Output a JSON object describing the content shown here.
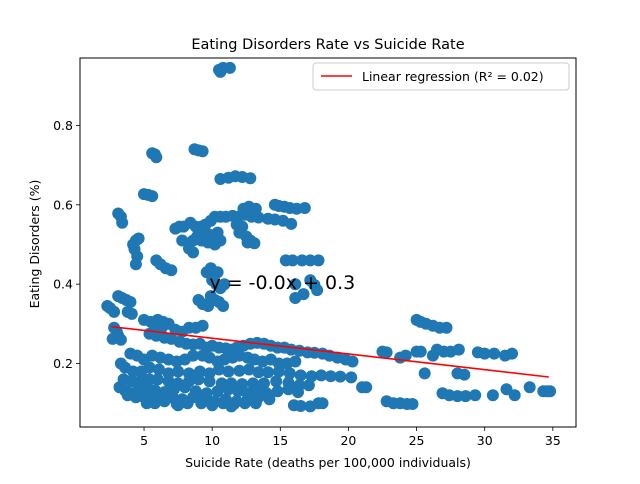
{
  "chart_data": {
    "type": "scatter",
    "title": "Eating Disorders Rate vs Suicide Rate",
    "xlabel": "Suicide Rate (deaths per 100,000 individuals)",
    "ylabel": "Eating Disorders (%)",
    "xlim": [
      0.3,
      36.7
    ],
    "ylim": [
      0.04,
      0.97
    ],
    "xticks": [
      5,
      10,
      15,
      20,
      25,
      30,
      35
    ],
    "yticks": [
      0.2,
      0.4,
      0.6,
      0.8
    ],
    "xtick_labels": [
      "5",
      "10",
      "15",
      "20",
      "25",
      "30",
      "35"
    ],
    "ytick_labels": [
      "0.2",
      "0.4",
      "0.6",
      "0.8"
    ],
    "grid": false,
    "legend_position": "upper-right",
    "colors": {
      "points": "#1f77b4",
      "regression": "#ff0000"
    },
    "annotation": {
      "text": "y = -0.0x + 0.3",
      "x": 9.8,
      "y": 0.405
    },
    "regression": {
      "label": "Linear regression (R² = 0.02)",
      "x": [
        2.6,
        34.7
      ],
      "y": [
        0.293,
        0.166
      ]
    },
    "points": [
      [
        10.5,
        0.94
      ],
      [
        10.8,
        0.945
      ],
      [
        11.3,
        0.945
      ],
      [
        10.6,
        0.935
      ],
      [
        8.7,
        0.74
      ],
      [
        9.0,
        0.737
      ],
      [
        9.3,
        0.735
      ],
      [
        5.6,
        0.73
      ],
      [
        5.8,
        0.727
      ],
      [
        5.9,
        0.72
      ],
      [
        10.6,
        0.665
      ],
      [
        11.2,
        0.668
      ],
      [
        11.7,
        0.672
      ],
      [
        12.2,
        0.67
      ],
      [
        12.8,
        0.667
      ],
      [
        5.0,
        0.627
      ],
      [
        5.3,
        0.625
      ],
      [
        5.6,
        0.622
      ],
      [
        3.1,
        0.578
      ],
      [
        3.3,
        0.57
      ],
      [
        3.4,
        0.555
      ],
      [
        4.2,
        0.5
      ],
      [
        4.4,
        0.51
      ],
      [
        4.6,
        0.515
      ],
      [
        4.3,
        0.488
      ],
      [
        4.5,
        0.47
      ],
      [
        4.4,
        0.45
      ],
      [
        5.9,
        0.46
      ],
      [
        6.2,
        0.45
      ],
      [
        6.6,
        0.44
      ],
      [
        7.0,
        0.435
      ],
      [
        7.3,
        0.54
      ],
      [
        7.6,
        0.545
      ],
      [
        7.9,
        0.545
      ],
      [
        8.4,
        0.555
      ],
      [
        8.8,
        0.545
      ],
      [
        9.2,
        0.545
      ],
      [
        9.5,
        0.55
      ],
      [
        9.9,
        0.56
      ],
      [
        10.2,
        0.57
      ],
      [
        10.6,
        0.57
      ],
      [
        11.0,
        0.57
      ],
      [
        11.5,
        0.572
      ],
      [
        11.9,
        0.57
      ],
      [
        9.5,
        0.53
      ],
      [
        9.8,
        0.525
      ],
      [
        10.0,
        0.52
      ],
      [
        10.4,
        0.53
      ],
      [
        9.7,
        0.505
      ],
      [
        10.2,
        0.5
      ],
      [
        10.6,
        0.51
      ],
      [
        8.6,
        0.51
      ],
      [
        8.9,
        0.52
      ],
      [
        9.2,
        0.51
      ],
      [
        8.3,
        0.49
      ],
      [
        8.6,
        0.48
      ],
      [
        7.8,
        0.51
      ],
      [
        12.3,
        0.59
      ],
      [
        12.7,
        0.595
      ],
      [
        13.2,
        0.59
      ],
      [
        12.4,
        0.575
      ],
      [
        12.9,
        0.57
      ],
      [
        13.4,
        0.568
      ],
      [
        11.8,
        0.55
      ],
      [
        12.2,
        0.545
      ],
      [
        12.0,
        0.53
      ],
      [
        12.5,
        0.52
      ],
      [
        12.8,
        0.51
      ],
      [
        12.6,
        0.505
      ],
      [
        13.1,
        0.503
      ],
      [
        14.6,
        0.6
      ],
      [
        14.9,
        0.597
      ],
      [
        15.3,
        0.595
      ],
      [
        15.7,
        0.592
      ],
      [
        16.2,
        0.59
      ],
      [
        16.8,
        0.592
      ],
      [
        14.1,
        0.565
      ],
      [
        14.6,
        0.563
      ],
      [
        15.2,
        0.56
      ],
      [
        15.8,
        0.552
      ],
      [
        15.4,
        0.46
      ],
      [
        15.9,
        0.46
      ],
      [
        16.6,
        0.46
      ],
      [
        17.2,
        0.46
      ],
      [
        17.8,
        0.46
      ],
      [
        17.2,
        0.41
      ],
      [
        17.5,
        0.398
      ],
      [
        17.7,
        0.385
      ],
      [
        16.1,
        0.365
      ],
      [
        16.7,
        0.375
      ],
      [
        16.1,
        0.4
      ],
      [
        9.6,
        0.43
      ],
      [
        9.9,
        0.44
      ],
      [
        10.4,
        0.43
      ],
      [
        10.0,
        0.41
      ],
      [
        10.3,
        0.4
      ],
      [
        10.6,
        0.39
      ],
      [
        10.9,
        0.4
      ],
      [
        9.9,
        0.37
      ],
      [
        10.2,
        0.36
      ],
      [
        10.5,
        0.355
      ],
      [
        10.8,
        0.345
      ],
      [
        9.0,
        0.36
      ],
      [
        9.3,
        0.35
      ],
      [
        9.7,
        0.345
      ],
      [
        2.3,
        0.345
      ],
      [
        2.5,
        0.34
      ],
      [
        2.8,
        0.33
      ],
      [
        3.1,
        0.37
      ],
      [
        3.4,
        0.365
      ],
      [
        3.7,
        0.36
      ],
      [
        4.0,
        0.355
      ],
      [
        3.8,
        0.33
      ],
      [
        4.1,
        0.325
      ],
      [
        5.0,
        0.31
      ],
      [
        5.5,
        0.305
      ],
      [
        6.0,
        0.31
      ],
      [
        6.4,
        0.305
      ],
      [
        5.8,
        0.295
      ],
      [
        6.3,
        0.29
      ],
      [
        6.8,
        0.3
      ],
      [
        7.3,
        0.285
      ],
      [
        7.8,
        0.28
      ],
      [
        8.3,
        0.29
      ],
      [
        8.8,
        0.29
      ],
      [
        9.3,
        0.295
      ],
      [
        5.4,
        0.275
      ],
      [
        5.9,
        0.27
      ],
      [
        6.5,
        0.265
      ],
      [
        7.0,
        0.262
      ],
      [
        2.8,
        0.29
      ],
      [
        3.0,
        0.28
      ],
      [
        3.1,
        0.27
      ],
      [
        2.7,
        0.262
      ],
      [
        3.3,
        0.26
      ],
      [
        7.6,
        0.255
      ],
      [
        8.1,
        0.25
      ],
      [
        8.6,
        0.248
      ],
      [
        9.1,
        0.25
      ],
      [
        9.6,
        0.24
      ],
      [
        10.0,
        0.245
      ],
      [
        10.5,
        0.24
      ],
      [
        11.0,
        0.238
      ],
      [
        11.4,
        0.235
      ],
      [
        11.8,
        0.24
      ],
      [
        12.3,
        0.245
      ],
      [
        12.8,
        0.25
      ],
      [
        13.3,
        0.252
      ],
      [
        13.8,
        0.25
      ],
      [
        14.3,
        0.245
      ],
      [
        14.8,
        0.24
      ],
      [
        15.3,
        0.24
      ],
      [
        15.8,
        0.235
      ],
      [
        16.4,
        0.232
      ],
      [
        17.0,
        0.228
      ],
      [
        17.5,
        0.227
      ],
      [
        18.1,
        0.225
      ],
      [
        18.6,
        0.22
      ],
      [
        19.2,
        0.215
      ],
      [
        19.8,
        0.21
      ],
      [
        20.3,
        0.205
      ],
      [
        4.0,
        0.225
      ],
      [
        4.5,
        0.22
      ],
      [
        5.0,
        0.21
      ],
      [
        5.6,
        0.22
      ],
      [
        6.2,
        0.215
      ],
      [
        6.8,
        0.21
      ],
      [
        7.4,
        0.205
      ],
      [
        8.0,
        0.21
      ],
      [
        8.6,
        0.22
      ],
      [
        9.3,
        0.22
      ],
      [
        9.8,
        0.215
      ],
      [
        10.4,
        0.205
      ],
      [
        10.9,
        0.21
      ],
      [
        11.5,
        0.215
      ],
      [
        12.0,
        0.22
      ],
      [
        12.6,
        0.215
      ],
      [
        13.1,
        0.21
      ],
      [
        13.7,
        0.205
      ],
      [
        14.3,
        0.21
      ],
      [
        14.9,
        0.2
      ],
      [
        15.5,
        0.2
      ],
      [
        16.1,
        0.205
      ],
      [
        3.3,
        0.2
      ],
      [
        3.6,
        0.19
      ],
      [
        4.2,
        0.18
      ],
      [
        4.8,
        0.18
      ],
      [
        5.4,
        0.19
      ],
      [
        6.1,
        0.185
      ],
      [
        6.8,
        0.175
      ],
      [
        7.5,
        0.18
      ],
      [
        8.3,
        0.175
      ],
      [
        9.1,
        0.18
      ],
      [
        9.8,
        0.175
      ],
      [
        10.5,
        0.185
      ],
      [
        11.2,
        0.18
      ],
      [
        12.0,
        0.182
      ],
      [
        12.7,
        0.185
      ],
      [
        13.4,
        0.178
      ],
      [
        14.1,
        0.178
      ],
      [
        14.9,
        0.18
      ],
      [
        15.7,
        0.175
      ],
      [
        16.5,
        0.17
      ],
      [
        17.3,
        0.168
      ],
      [
        18.0,
        0.17
      ],
      [
        18.7,
        0.168
      ],
      [
        19.4,
        0.167
      ],
      [
        20.2,
        0.165
      ],
      [
        3.5,
        0.16
      ],
      [
        4.1,
        0.155
      ],
      [
        4.7,
        0.155
      ],
      [
        5.4,
        0.16
      ],
      [
        6.0,
        0.16
      ],
      [
        6.8,
        0.155
      ],
      [
        7.5,
        0.15
      ],
      [
        8.3,
        0.155
      ],
      [
        9.0,
        0.16
      ],
      [
        9.8,
        0.155
      ],
      [
        10.7,
        0.15
      ],
      [
        11.4,
        0.15
      ],
      [
        12.2,
        0.148
      ],
      [
        13.0,
        0.15
      ],
      [
        13.8,
        0.15
      ],
      [
        14.7,
        0.155
      ],
      [
        15.6,
        0.152
      ],
      [
        16.4,
        0.145
      ],
      [
        17.1,
        0.145
      ],
      [
        3.2,
        0.14
      ],
      [
        3.6,
        0.132
      ],
      [
        4.0,
        0.125
      ],
      [
        4.6,
        0.135
      ],
      [
        5.2,
        0.14
      ],
      [
        5.8,
        0.133
      ],
      [
        6.5,
        0.128
      ],
      [
        7.2,
        0.135
      ],
      [
        8.0,
        0.14
      ],
      [
        8.8,
        0.13
      ],
      [
        9.6,
        0.125
      ],
      [
        10.4,
        0.13
      ],
      [
        11.2,
        0.135
      ],
      [
        11.9,
        0.13
      ],
      [
        12.6,
        0.125
      ],
      [
        13.3,
        0.13
      ],
      [
        14.0,
        0.125
      ],
      [
        14.8,
        0.13
      ],
      [
        15.6,
        0.135
      ],
      [
        16.3,
        0.128
      ],
      [
        21.0,
        0.14
      ],
      [
        21.3,
        0.14
      ],
      [
        3.8,
        0.12
      ],
      [
        4.4,
        0.115
      ],
      [
        5.0,
        0.115
      ],
      [
        5.6,
        0.12
      ],
      [
        6.4,
        0.112
      ],
      [
        7.1,
        0.115
      ],
      [
        7.8,
        0.11
      ],
      [
        8.6,
        0.115
      ],
      [
        9.4,
        0.11
      ],
      [
        10.2,
        0.105
      ],
      [
        11.0,
        0.11
      ],
      [
        11.8,
        0.105
      ],
      [
        12.6,
        0.11
      ],
      [
        13.4,
        0.115
      ],
      [
        14.2,
        0.11
      ],
      [
        5.2,
        0.1
      ],
      [
        5.8,
        0.1
      ],
      [
        6.5,
        0.105
      ],
      [
        7.4,
        0.098
      ],
      [
        8.2,
        0.1
      ],
      [
        9.2,
        0.1
      ],
      [
        10.0,
        0.095
      ],
      [
        10.8,
        0.1
      ],
      [
        11.6,
        0.098
      ],
      [
        12.4,
        0.1
      ],
      [
        13.2,
        0.1
      ],
      [
        7.5,
        0.095
      ],
      [
        11.4,
        0.092
      ],
      [
        16.0,
        0.095
      ],
      [
        16.5,
        0.093
      ],
      [
        17.2,
        0.092
      ],
      [
        17.8,
        0.1
      ],
      [
        18.1,
        0.1
      ],
      [
        22.8,
        0.105
      ],
      [
        23.3,
        0.1
      ],
      [
        23.8,
        0.1
      ],
      [
        24.3,
        0.098
      ],
      [
        24.7,
        0.098
      ],
      [
        25.0,
        0.31
      ],
      [
        25.3,
        0.305
      ],
      [
        25.7,
        0.3
      ],
      [
        26.2,
        0.295
      ],
      [
        26.7,
        0.29
      ],
      [
        27.2,
        0.29
      ],
      [
        25.0,
        0.23
      ],
      [
        25.3,
        0.23
      ],
      [
        22.5,
        0.23
      ],
      [
        22.8,
        0.228
      ],
      [
        26.5,
        0.235
      ],
      [
        27.0,
        0.23
      ],
      [
        27.5,
        0.23
      ],
      [
        28.1,
        0.235
      ],
      [
        29.5,
        0.228
      ],
      [
        30.0,
        0.225
      ],
      [
        30.7,
        0.225
      ],
      [
        31.5,
        0.22
      ],
      [
        32.0,
        0.225
      ],
      [
        23.8,
        0.215
      ],
      [
        24.2,
        0.22
      ],
      [
        26.2,
        0.22
      ],
      [
        25.6,
        0.175
      ],
      [
        28.0,
        0.175
      ],
      [
        28.5,
        0.172
      ],
      [
        26.9,
        0.125
      ],
      [
        27.4,
        0.12
      ],
      [
        28.0,
        0.118
      ],
      [
        28.6,
        0.118
      ],
      [
        29.3,
        0.12
      ],
      [
        30.6,
        0.12
      ],
      [
        31.6,
        0.135
      ],
      [
        32.2,
        0.12
      ],
      [
        33.3,
        0.14
      ],
      [
        34.3,
        0.13
      ],
      [
        34.6,
        0.13
      ],
      [
        34.8,
        0.13
      ]
    ]
  }
}
